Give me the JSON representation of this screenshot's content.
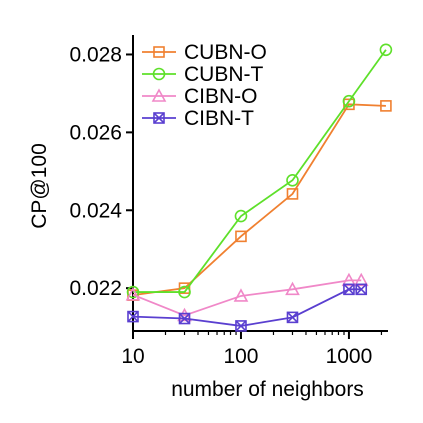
{
  "chart_data": {
    "type": "line",
    "xlabel": "number of neighbors",
    "ylabel": "CP@100",
    "xscale": "log",
    "xlim": [
      10,
      2300
    ],
    "ylim": [
      0.0209,
      0.0285
    ],
    "xticks": [
      10,
      100,
      1000
    ],
    "xtick_labels": [
      "10",
      "100",
      "1000"
    ],
    "yticks": [
      0.022,
      0.024,
      0.026,
      0.028
    ],
    "ytick_labels": [
      "0.022",
      "0.024",
      "0.026",
      "0.028"
    ],
    "legend_position": "top-left",
    "grid": false,
    "series": [
      {
        "name": "CUBN-O",
        "color": "#f08030",
        "marker": "square",
        "x": [
          10,
          30,
          100,
          300,
          1000,
          2200
        ],
        "y": [
          0.02182,
          0.022,
          0.02333,
          0.02442,
          0.02672,
          0.02668
        ]
      },
      {
        "name": "CUBN-T",
        "color": "#5ee02a",
        "marker": "circle",
        "x": [
          10,
          30,
          100,
          300,
          1000,
          2200
        ],
        "y": [
          0.0219,
          0.0219,
          0.02385,
          0.02477,
          0.0268,
          0.02812
        ]
      },
      {
        "name": "CIBN-O",
        "color": "#f088c8",
        "marker": "triangle",
        "x": [
          10,
          30,
          100,
          300,
          1000,
          1300
        ],
        "y": [
          0.02183,
          0.0213,
          0.0218,
          0.02197,
          0.0222,
          0.0222
        ]
      },
      {
        "name": "CIBN-T",
        "color": "#5a3fd0",
        "marker": "boxed-x",
        "x": [
          10,
          30,
          100,
          300,
          1000,
          1300
        ],
        "y": [
          0.02127,
          0.02122,
          0.02103,
          0.02125,
          0.02197,
          0.02197
        ]
      }
    ]
  }
}
